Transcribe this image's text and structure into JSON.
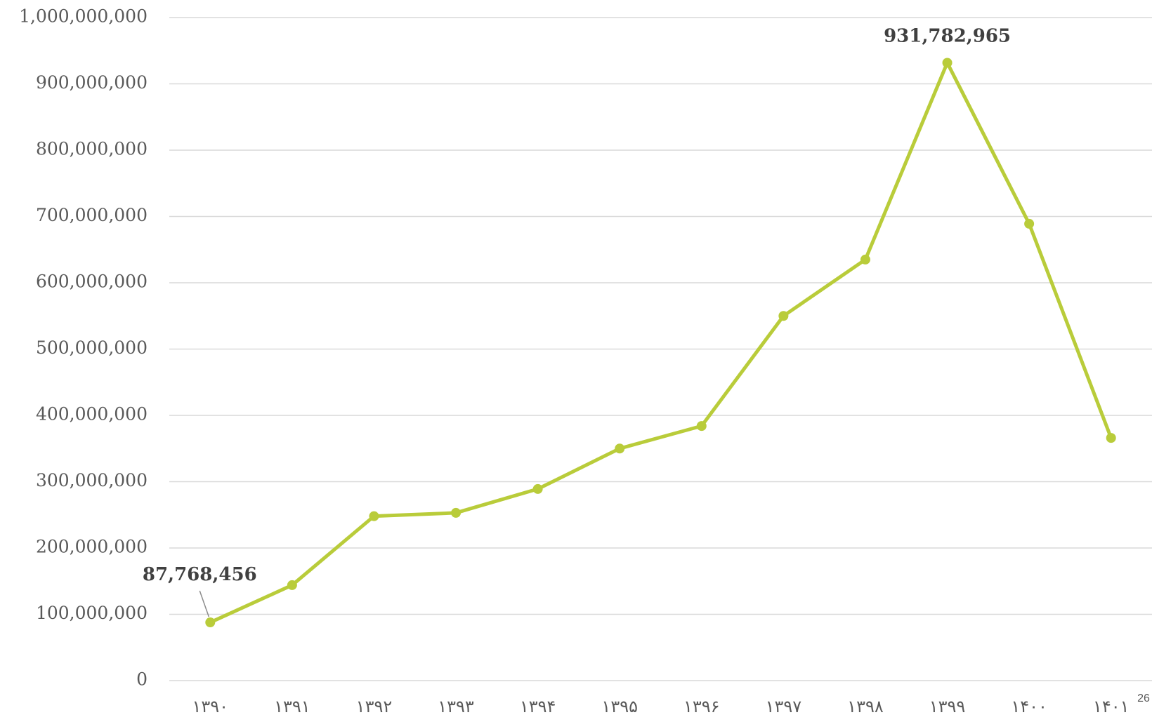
{
  "chart_data": {
    "type": "line",
    "categories": [
      "۱۳۹۰",
      "۱۳۹۱",
      "۱۳۹۲",
      "۱۳۹۳",
      "۱۳۹۴",
      "۱۳۹۵",
      "۱۳۹۶",
      "۱۳۹۷",
      "۱۳۹۸",
      "۱۳۹۹",
      "۱۴۰۰",
      "۱۴۰۱"
    ],
    "series": [
      {
        "color": "#b9cc3a",
        "values": [
          87768456,
          144000000,
          248000000,
          253000000,
          289000000,
          350000000,
          384000000,
          550000000,
          635000000,
          931782965,
          689000000,
          366000000
        ],
        "value_labels": [
          "87,768,456",
          null,
          null,
          null,
          null,
          null,
          null,
          null,
          null,
          "931,782,965",
          null,
          null
        ]
      }
    ],
    "ylim": [
      0,
      1000000000
    ],
    "yticks": [
      0,
      {
        "value": 100000000,
        "label": "100,000,000"
      },
      {
        "value": 200000000,
        "label": "200,000,000"
      },
      {
        "value": 300000000,
        "label": "300,000,000"
      },
      {
        "value": 400000000,
        "label": "400,000,000"
      },
      {
        "value": 500000000,
        "label": "500,000,000"
      },
      {
        "value": 600000000,
        "label": "600,000,000"
      },
      {
        "value": 700000000,
        "label": "700,000,000"
      },
      {
        "value": 800000000,
        "label": "800,000,000"
      },
      {
        "value": 900000000,
        "label": "900,000,000"
      },
      {
        "value": 1000000000,
        "label": "1,000,000,000"
      }
    ],
    "grid": true,
    "annotation": "26"
  }
}
